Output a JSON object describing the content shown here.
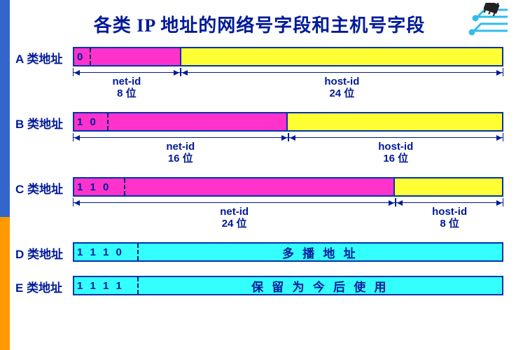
{
  "title": "各类 IP 地址的网络号字段和主机号字段",
  "colors": {
    "border": "#0033aa",
    "text": "#001a99",
    "magenta": "#ff33cc",
    "yellow": "#ffff33",
    "cyan": "#33ffff",
    "sidebar_blue": "#3366cc",
    "sidebar_orange": "#ff9900",
    "bg": "#ffffff"
  },
  "classes": [
    {
      "label": "A 类地址",
      "prefix_bits": "0",
      "prefix_width_pct": 4,
      "segments": [
        {
          "color": "magenta",
          "width_pct": 21
        },
        {
          "color": "yellow",
          "width_pct": 75
        }
      ],
      "dims": [
        {
          "width_pct": 25,
          "label1": "net-id",
          "label2": "8 位"
        },
        {
          "width_pct": 75,
          "label1": "host-id",
          "label2": "24 位"
        }
      ]
    },
    {
      "label": "B 类地址",
      "prefix_bits": "1 0",
      "prefix_width_pct": 8,
      "segments": [
        {
          "color": "magenta",
          "width_pct": 42
        },
        {
          "color": "yellow",
          "width_pct": 50
        }
      ],
      "dims": [
        {
          "width_pct": 50,
          "label1": "net-id",
          "label2": "16 位"
        },
        {
          "width_pct": 50,
          "label1": "host-id",
          "label2": "16 位"
        }
      ]
    },
    {
      "label": "C 类地址",
      "prefix_bits": "1 1 0",
      "prefix_width_pct": 12,
      "segments": [
        {
          "color": "magenta",
          "width_pct": 63
        },
        {
          "color": "yellow",
          "width_pct": 25
        }
      ],
      "dims": [
        {
          "width_pct": 75,
          "label1": "net-id",
          "label2": "24 位"
        },
        {
          "width_pct": 25,
          "label1": "host-id",
          "label2": "8 位"
        }
      ]
    },
    {
      "label": "D 类地址",
      "prefix_bits": "1 1 1 0",
      "prefix_width_pct": 15,
      "segments": [
        {
          "color": "cyan",
          "width_pct": 85,
          "text": "多 播 地 址"
        }
      ],
      "prefix_color": "cyan",
      "dims": []
    },
    {
      "label": "E 类地址",
      "prefix_bits": "1 1 1 1",
      "prefix_width_pct": 15,
      "segments": [
        {
          "color": "cyan",
          "width_pct": 85,
          "text": "保 留 为 今 后 使 用"
        }
      ],
      "prefix_color": "cyan",
      "dims": []
    }
  ]
}
